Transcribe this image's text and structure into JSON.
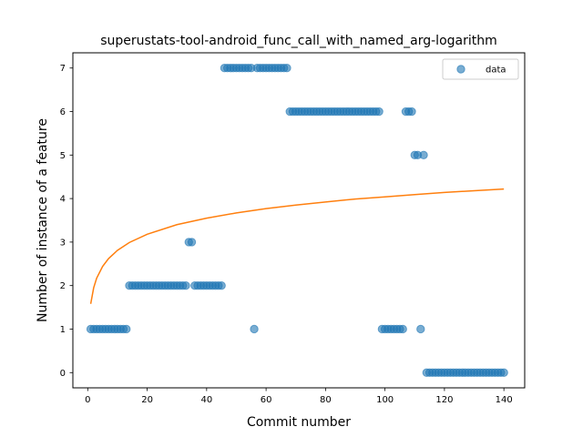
{
  "chart_data": {
    "type": "scatter",
    "title": "superustats-tool-android_func_call_with_named_arg-logarithm",
    "xlabel": "Commit number",
    "ylabel": "Number of instance of a feature",
    "xlim": [
      -5,
      147
    ],
    "ylim": [
      -0.35,
      7.35
    ],
    "xticks": [
      0,
      20,
      40,
      60,
      80,
      100,
      120,
      140
    ],
    "yticks": [
      0,
      1,
      2,
      3,
      4,
      5,
      6,
      7
    ],
    "grid": false,
    "legend_position": "top-right",
    "colors": {
      "data": "#1f77b4",
      "fit": "#ff7f0e"
    },
    "series": [
      {
        "name": "data",
        "kind": "scatter",
        "x": [
          1,
          2,
          3,
          4,
          5,
          6,
          7,
          8,
          9,
          10,
          11,
          12,
          13,
          14,
          15,
          16,
          17,
          18,
          19,
          20,
          21,
          22,
          23,
          24,
          25,
          26,
          27,
          28,
          29,
          30,
          31,
          32,
          33,
          34,
          35,
          36,
          37,
          38,
          39,
          40,
          41,
          42,
          43,
          44,
          45,
          46,
          47,
          48,
          49,
          50,
          51,
          52,
          53,
          54,
          55,
          56,
          57,
          58,
          59,
          60,
          61,
          62,
          63,
          64,
          65,
          66,
          67,
          68,
          69,
          70,
          71,
          72,
          73,
          74,
          75,
          76,
          77,
          78,
          79,
          80,
          81,
          82,
          83,
          84,
          85,
          86,
          87,
          88,
          89,
          90,
          91,
          92,
          93,
          94,
          95,
          96,
          97,
          98,
          99,
          100,
          101,
          102,
          103,
          104,
          105,
          106,
          107,
          108,
          109,
          110,
          111,
          112,
          113,
          114,
          115,
          116,
          117,
          118,
          119,
          120,
          121,
          122,
          123,
          124,
          125,
          126,
          127,
          128,
          129,
          130,
          131,
          132,
          133,
          134,
          135,
          136,
          137,
          138,
          139,
          140
        ],
        "y": [
          1,
          1,
          1,
          1,
          1,
          1,
          1,
          1,
          1,
          1,
          1,
          1,
          1,
          2,
          2,
          2,
          2,
          2,
          2,
          2,
          2,
          2,
          2,
          2,
          2,
          2,
          2,
          2,
          2,
          2,
          2,
          2,
          2,
          3,
          3,
          2,
          2,
          2,
          2,
          2,
          2,
          2,
          2,
          2,
          2,
          7,
          7,
          7,
          7,
          7,
          7,
          7,
          7,
          7,
          7,
          1,
          7,
          7,
          7,
          7,
          7,
          7,
          7,
          7,
          7,
          7,
          7,
          6,
          6,
          6,
          6,
          6,
          6,
          6,
          6,
          6,
          6,
          6,
          6,
          6,
          6,
          6,
          6,
          6,
          6,
          6,
          6,
          6,
          6,
          6,
          6,
          6,
          6,
          6,
          6,
          6,
          6,
          6,
          1,
          1,
          1,
          1,
          1,
          1,
          1,
          1,
          6,
          6,
          6,
          5,
          5,
          1,
          5,
          0,
          0,
          0,
          0,
          0,
          0,
          0,
          0,
          0,
          0,
          0,
          0,
          0,
          0,
          0,
          0,
          0,
          0,
          0,
          0,
          0,
          0,
          0,
          0,
          0,
          0,
          0
        ]
      },
      {
        "name": "",
        "kind": "line",
        "x": [
          1,
          2,
          3,
          5,
          7,
          10,
          14,
          20,
          30,
          40,
          50,
          60,
          70,
          80,
          90,
          100,
          110,
          120,
          130,
          140
        ],
        "y": [
          1.58,
          1.95,
          2.17,
          2.44,
          2.62,
          2.81,
          2.99,
          3.18,
          3.4,
          3.55,
          3.67,
          3.77,
          3.85,
          3.92,
          3.99,
          4.04,
          4.09,
          4.14,
          4.18,
          4.22
        ]
      }
    ]
  }
}
